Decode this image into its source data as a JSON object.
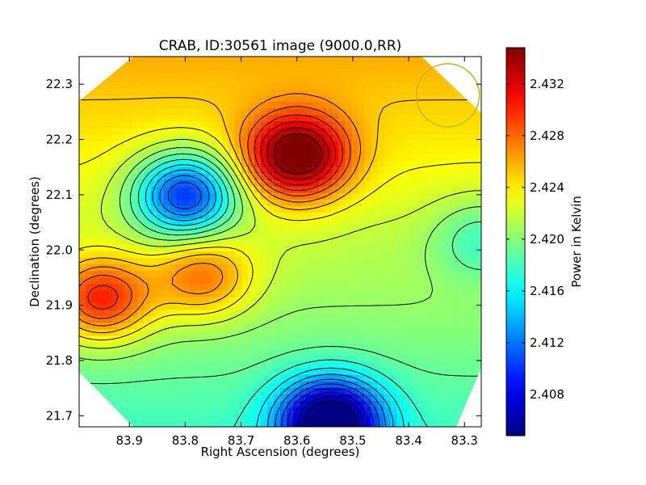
{
  "chart_data": {
    "type": "heatmap",
    "title": "CRAB, ID:30561 image (9000.0,RR)",
    "xlabel": "Right Ascension (degrees)",
    "ylabel": "Declination (degrees)",
    "x_range": [
      83.99,
      83.27
    ],
    "y_range": [
      21.68,
      22.35
    ],
    "x_ticks": [
      "83.9",
      "83.8",
      "83.7",
      "83.6",
      "83.5",
      "83.4",
      "83.3"
    ],
    "x_tick_values": [
      83.9,
      83.8,
      83.7,
      83.6,
      83.5,
      83.4,
      83.3
    ],
    "y_ticks": [
      "21.7",
      "21.8",
      "21.9",
      "22.0",
      "22.1",
      "22.2",
      "22.3"
    ],
    "y_tick_values": [
      21.7,
      21.8,
      21.9,
      22.0,
      22.1,
      22.2,
      22.3
    ],
    "colorbar": {
      "label": "Power in Kelvin",
      "range": [
        2.4048,
        2.4348
      ],
      "ticks": [
        "2.408",
        "2.412",
        "2.416",
        "2.420",
        "2.424",
        "2.428",
        "2.432"
      ],
      "tick_values": [
        2.408,
        2.412,
        2.416,
        2.42,
        2.424,
        2.428,
        2.432
      ],
      "colormap": "jet"
    },
    "features": [
      {
        "kind": "max",
        "ra": 83.6,
        "dec": 22.17,
        "value": 2.4345
      },
      {
        "kind": "max",
        "ra": 83.95,
        "dec": 21.91,
        "value": 2.431
      },
      {
        "kind": "max",
        "ra": 83.77,
        "dec": 21.95,
        "value": 2.428
      },
      {
        "kind": "min",
        "ra": 83.8,
        "dec": 22.1,
        "value": 2.4085
      },
      {
        "kind": "min",
        "ra": 83.54,
        "dec": 21.69,
        "value": 2.405
      },
      {
        "kind": "min",
        "ra": 83.27,
        "dec": 22.02,
        "value": 2.4175
      },
      {
        "kind": "saddle",
        "ra": 83.67,
        "dec": 22.01,
        "value": 2.4215
      },
      {
        "kind": "lobe",
        "ra": 83.45,
        "dec": 22.02,
        "value": 2.4205
      }
    ],
    "contours": true,
    "footprint": "octagon",
    "beam_marker": {
      "ra": 83.33,
      "dec": 22.28,
      "color": "#c8b400"
    }
  }
}
